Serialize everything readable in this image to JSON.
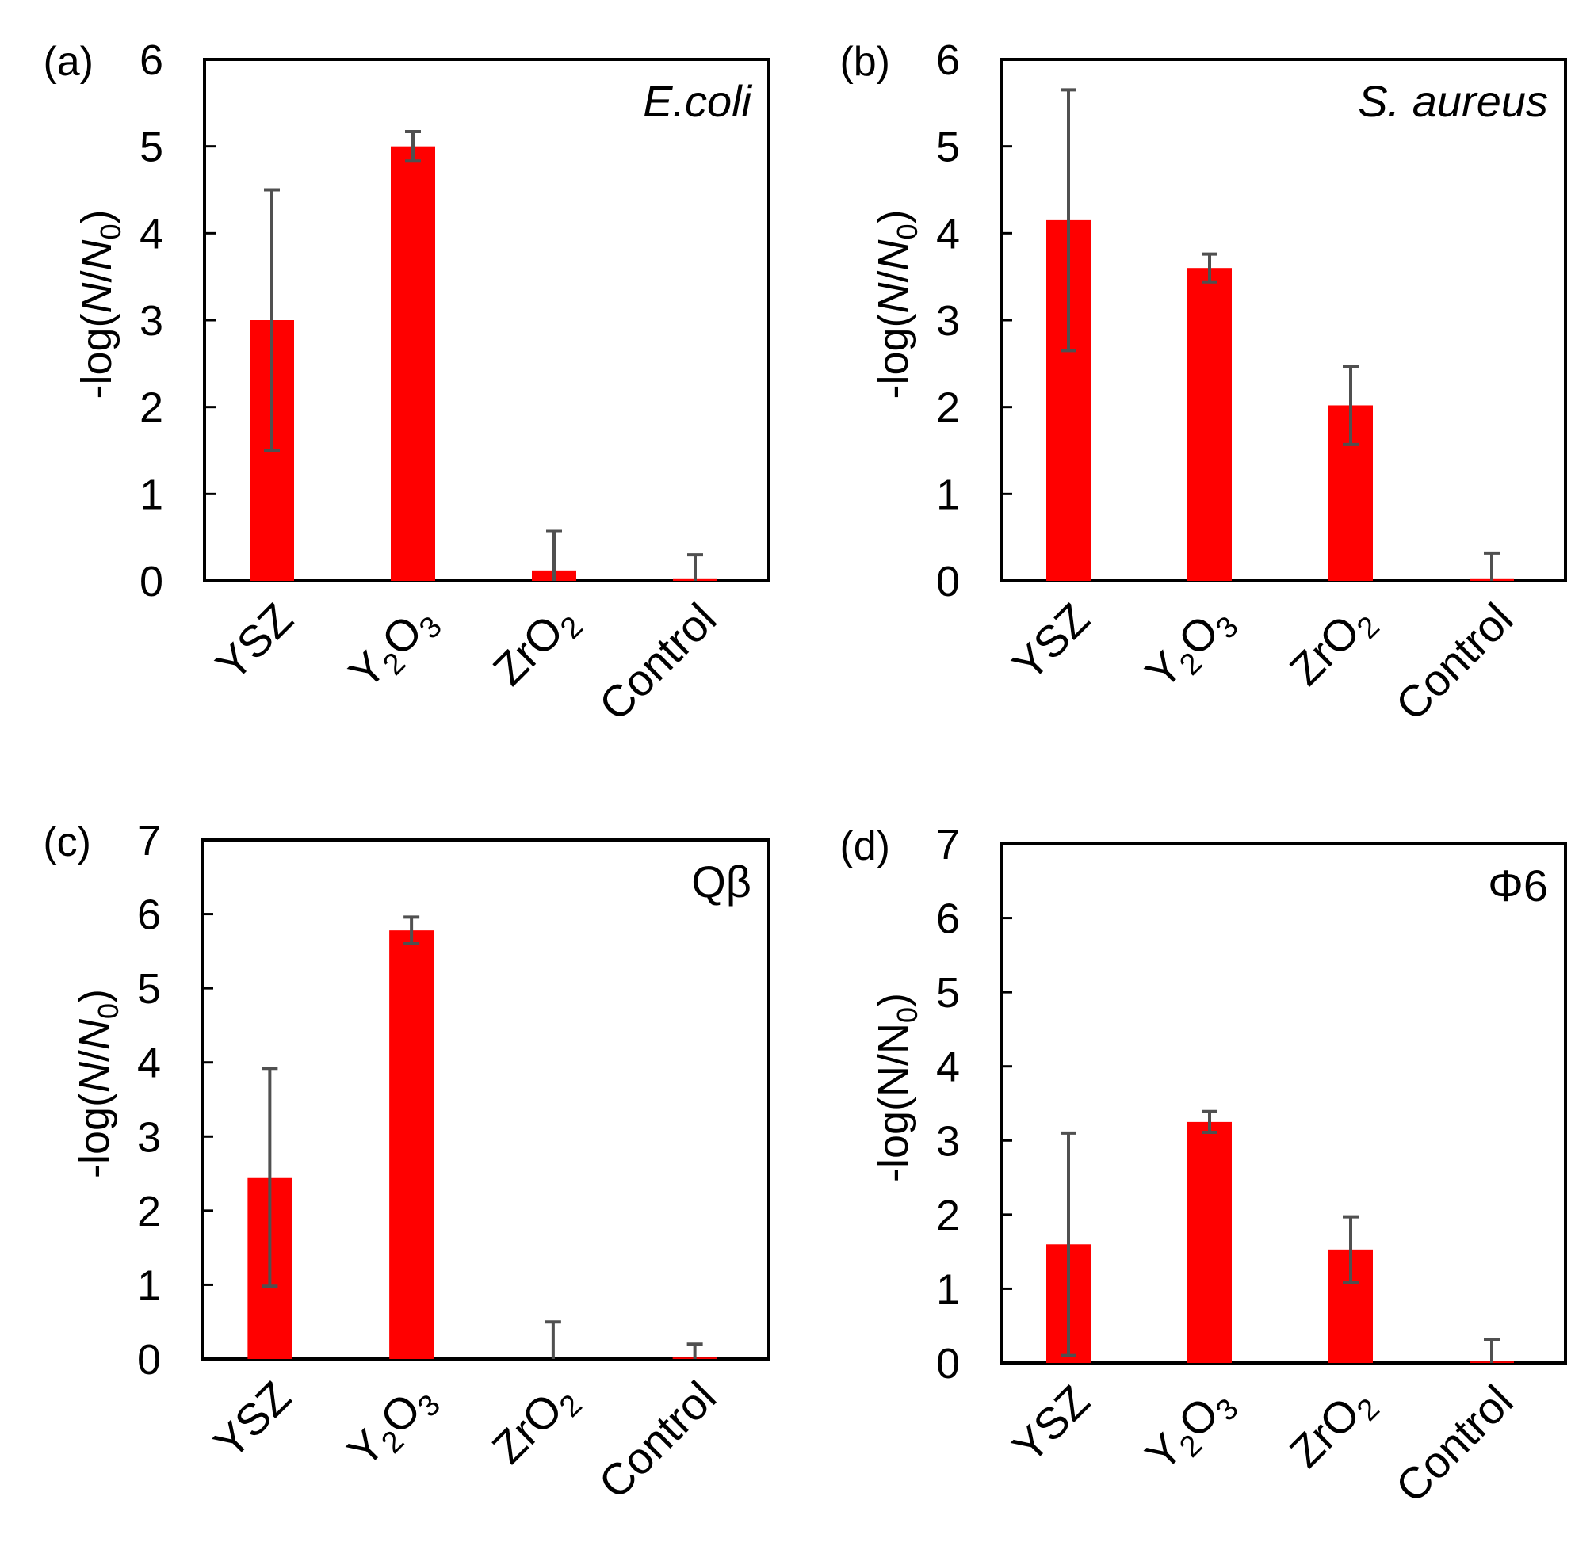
{
  "colors": {
    "bar": "#ff0000",
    "error_bar": "#505050",
    "axis": "#000000"
  },
  "chart_data": [
    {
      "type": "bar",
      "panel_label": "(a)",
      "title": "E.coli",
      "title_italic": true,
      "ylabel_parts": {
        "prefix": "-log(",
        "numerator": "N",
        "slash": "/",
        "denominator": "N",
        "subscript": "0",
        "suffix": ")"
      },
      "ylabel_italic": true,
      "ylim": [
        0,
        6
      ],
      "yticks": [
        "0",
        "1",
        "2",
        "3",
        "4",
        "5",
        "6"
      ],
      "categories": [
        {
          "main": "YSZ"
        },
        {
          "main": "Y",
          "sub1": "2",
          "mid": "O",
          "sub2": "3"
        },
        {
          "main": "ZrO",
          "sub1": "2"
        },
        {
          "main": "Control"
        }
      ],
      "values": [
        3.0,
        5.0,
        0.12,
        0.02
      ],
      "errors": [
        1.5,
        0.17,
        0.45,
        0.28
      ]
    },
    {
      "type": "bar",
      "panel_label": "(b)",
      "title": "S. aureus",
      "title_italic": true,
      "ylabel_parts": {
        "prefix": "-log(",
        "numerator": "N",
        "slash": "/",
        "denominator": "N",
        "subscript": "0",
        "suffix": ")"
      },
      "ylabel_italic": true,
      "ylim": [
        0,
        6
      ],
      "yticks": [
        "0",
        "1",
        "2",
        "3",
        "4",
        "5",
        "6"
      ],
      "categories": [
        {
          "main": "YSZ"
        },
        {
          "main": "Y",
          "sub1": "2",
          "mid": "O",
          "sub2": "3"
        },
        {
          "main": "ZrO",
          "sub1": "2"
        },
        {
          "main": "Control"
        }
      ],
      "values": [
        4.15,
        3.6,
        2.02,
        0.02
      ],
      "errors": [
        1.5,
        0.16,
        0.45,
        0.3
      ]
    },
    {
      "type": "bar",
      "panel_label": "(c)",
      "title": "Qβ",
      "title_italic": false,
      "ylabel_parts": {
        "prefix": "-log(",
        "numerator": "N",
        "slash": "/",
        "denominator": "N",
        "subscript": "0",
        "suffix": ")"
      },
      "ylabel_italic": true,
      "ylim": [
        0,
        7
      ],
      "yticks": [
        "0",
        "1",
        "2",
        "3",
        "4",
        "5",
        "6",
        "7"
      ],
      "categories": [
        {
          "main": "YSZ"
        },
        {
          "main": "Y",
          "sub1": "2",
          "mid": "O",
          "sub2": "3"
        },
        {
          "main": "ZrO",
          "sub1": "2"
        },
        {
          "main": "Control"
        }
      ],
      "values": [
        2.45,
        5.78,
        0.0,
        0.02
      ],
      "errors": [
        1.47,
        0.18,
        0.5,
        0.18
      ]
    },
    {
      "type": "bar",
      "panel_label": "(d)",
      "title": "Φ6",
      "title_italic": false,
      "ylabel_parts": {
        "prefix": "-log(",
        "numerator": "N",
        "slash": "/",
        "denominator": "N",
        "subscript": "0",
        "suffix": ")"
      },
      "ylabel_italic": false,
      "ylim": [
        0,
        7
      ],
      "yticks": [
        "0",
        "1",
        "2",
        "3",
        "4",
        "5",
        "6",
        "7"
      ],
      "categories": [
        {
          "main": "YSZ"
        },
        {
          "main": "Y",
          "sub1": "2",
          "mid": "O",
          "sub2": "3"
        },
        {
          "main": "ZrO",
          "sub1": "2"
        },
        {
          "main": "Control"
        }
      ],
      "values": [
        1.6,
        3.25,
        1.53,
        0.02
      ],
      "errors": [
        1.5,
        0.14,
        0.44,
        0.3
      ]
    }
  ]
}
